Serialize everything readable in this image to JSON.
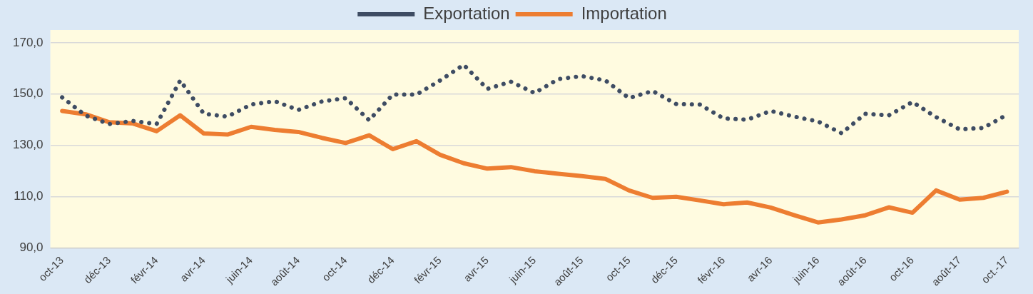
{
  "chart_data": {
    "type": "line",
    "categories": [
      "oct-13",
      null,
      "déc-13",
      null,
      "févr-14",
      null,
      "avr-14",
      null,
      "juin-14",
      null,
      "août-14",
      null,
      "oct-14",
      null,
      "déc-14",
      null,
      "févr-15",
      null,
      "avr-15",
      null,
      "juin-15",
      null,
      "août-15",
      null,
      "oct-15",
      null,
      "déc-15",
      null,
      "févr-16",
      null,
      "avr-16",
      null,
      "juin-16",
      null,
      "août-16",
      null,
      "oct-16",
      null,
      "août-17",
      null,
      "oct.-17"
    ],
    "series": [
      {
        "name": "Exportation",
        "color": "#3e4c63",
        "line_style": "dotted",
        "values": [
          148.7,
          141.6,
          138.3,
          139.5,
          138.3,
          155.3,
          142.3,
          141.2,
          145.9,
          147.2,
          143.8,
          147.1,
          148.4,
          139.8,
          149.8,
          149.8,
          155.3,
          161.4,
          152.0,
          154.8,
          150.4,
          155.8,
          157.0,
          155.3,
          148.4,
          151.2,
          146.1,
          145.9,
          140.5,
          140.0,
          143.4,
          141.2,
          139.3,
          134.7,
          142.3,
          141.7,
          146.9,
          141.0,
          136.2,
          136.8,
          141.9
        ]
      },
      {
        "name": "Importation",
        "color": "#ed7d31",
        "line_style": "solid",
        "values": [
          143.4,
          142.1,
          139.0,
          138.5,
          135.5,
          141.7,
          134.6,
          134.2,
          137.2,
          136.0,
          135.2,
          132.9,
          130.9,
          133.9,
          128.5,
          131.6,
          126.3,
          123.0,
          120.9,
          121.5,
          119.9,
          118.9,
          118.0,
          116.9,
          112.4,
          109.5,
          109.9,
          108.5,
          107.0,
          107.7,
          105.7,
          102.7,
          99.9,
          101.1,
          102.7,
          105.8,
          103.7,
          112.4,
          108.8,
          109.5,
          111.9
        ]
      }
    ],
    "ylim": [
      90,
      175
    ],
    "yticks": [
      {
        "value": 90,
        "label": "90,0"
      },
      {
        "value": 110,
        "label": "110,0"
      },
      {
        "value": 130,
        "label": "130,0"
      },
      {
        "value": 150,
        "label": "150,0"
      },
      {
        "value": 170,
        "label": "170,0"
      }
    ],
    "grid": "y",
    "legend": "top",
    "marker": "none"
  }
}
